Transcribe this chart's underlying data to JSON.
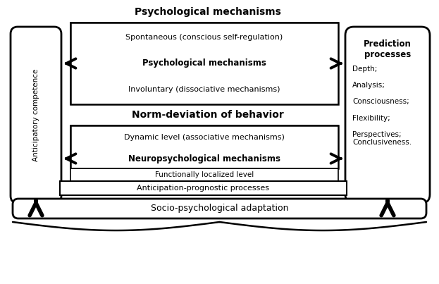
{
  "title_psych": "Psychological mechanisms",
  "title_norm": "Norm-deviation of behavior",
  "box_left_text": "Anticipatory competence",
  "box_right_title": "Prediction\nprocesses",
  "box_right_items": "Depth;\n\nAnalysis;\n\nConsciousness;\n\nFlexibility;\n\nPerspectives;\nConclusiveness.",
  "psych_row1": "Spontaneous (conscious self-regulation)",
  "psych_row2": "Psychological mechanisms",
  "psych_row3": "Involuntary (dissociative mechanisms)",
  "norm_row1": "Dynamic level (associative mechanisms)",
  "norm_row2": "Neuropsychological mechanisms",
  "norm_row3": "Functionally localized level",
  "norm_row4": "Anticipation-prognostic processes",
  "bottom_box": "Socio-psychological adaptation",
  "bg_color": "#ffffff"
}
